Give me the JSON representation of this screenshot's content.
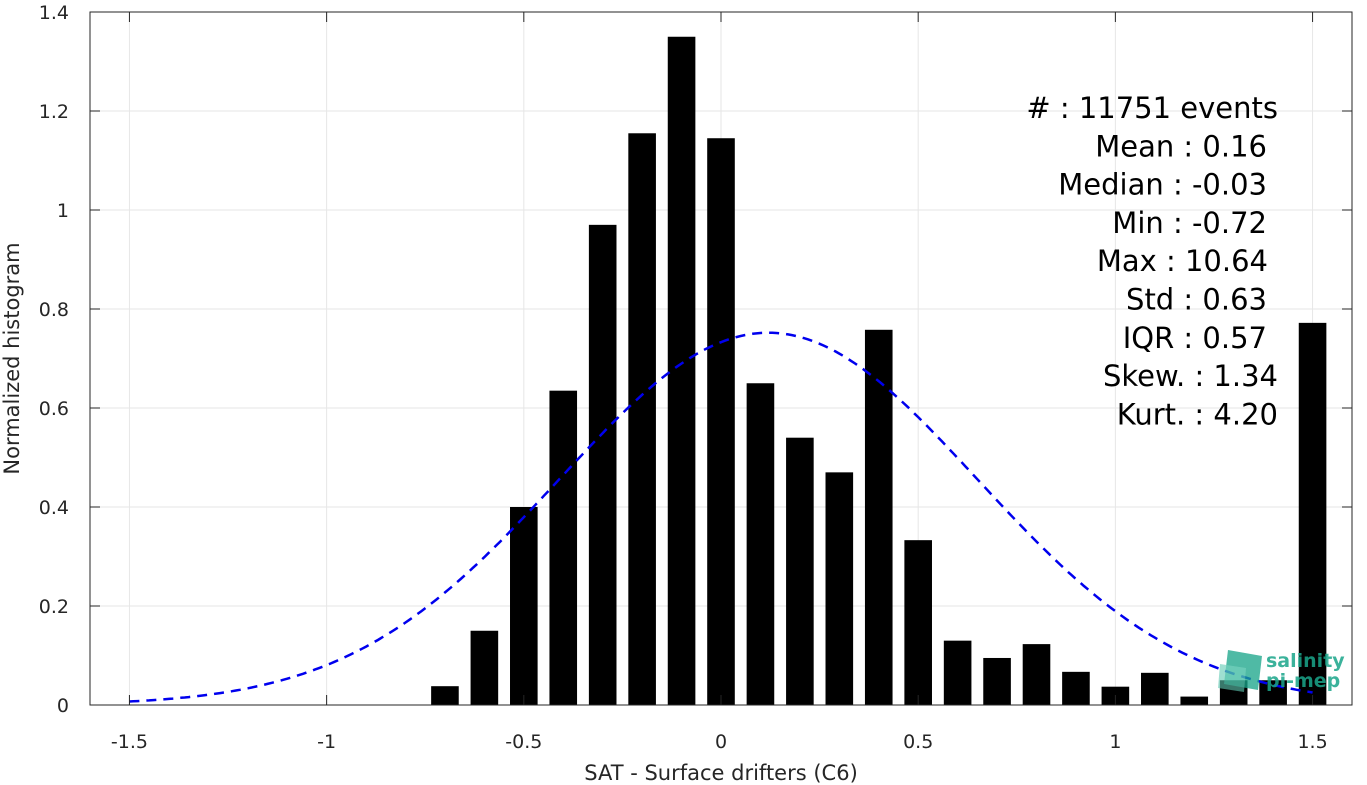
{
  "chart_data": {
    "type": "bar",
    "xlabel": "SAT - Surface drifters (C6)",
    "ylabel": "Normalized histogram",
    "xlim": [
      -1.6,
      1.6
    ],
    "ylim": [
      0,
      1.4
    ],
    "xticks": [
      -1.5,
      -1,
      -0.5,
      0,
      0.5,
      1,
      1.5
    ],
    "xtick_labels": [
      "-1.5",
      "-1",
      "-0.5",
      "0",
      "0.5",
      "1",
      "1.5"
    ],
    "yticks": [
      0,
      0.2,
      0.4,
      0.6,
      0.8,
      1,
      1.2,
      1.4
    ],
    "ytick_labels": [
      "0",
      "0.2",
      "0.4",
      "0.6",
      "0.8",
      "1",
      "1.2",
      "1.4"
    ],
    "grid": true,
    "bar_width": 0.07,
    "bar_color": "#000000",
    "bars": {
      "x": [
        -0.7,
        -0.6,
        -0.5,
        -0.4,
        -0.3,
        -0.2,
        -0.1,
        0.0,
        0.1,
        0.2,
        0.3,
        0.4,
        0.5,
        0.6,
        0.7,
        0.8,
        0.9,
        1.0,
        1.1,
        1.2,
        1.3,
        1.4,
        1.5
      ],
      "values": [
        0.038,
        0.15,
        0.4,
        0.635,
        0.97,
        1.155,
        1.35,
        1.145,
        0.65,
        0.54,
        0.47,
        0.758,
        0.333,
        0.13,
        0.095,
        0.123,
        0.067,
        0.037,
        0.065,
        0.017,
        0.05,
        0.05,
        0.772
      ]
    },
    "fit_curve": {
      "style": "dashed",
      "color": "#0000ee",
      "mean": 0.12,
      "std": 0.53,
      "peak": 0.752,
      "x_range": [
        -1.5,
        1.5
      ]
    },
    "stats": [
      "#  : 11751 events",
      "Mean : 0.16",
      "Median : -0.03",
      "Min : -0.72",
      "Max : 10.64",
      "Std : 0.63",
      "IQR : 0.57",
      "Skew. : 1.34",
      "Kurt. : 4.20"
    ],
    "logo": {
      "line1": "salinity",
      "line2": "pi-mep",
      "color": "#1aa58a"
    }
  }
}
